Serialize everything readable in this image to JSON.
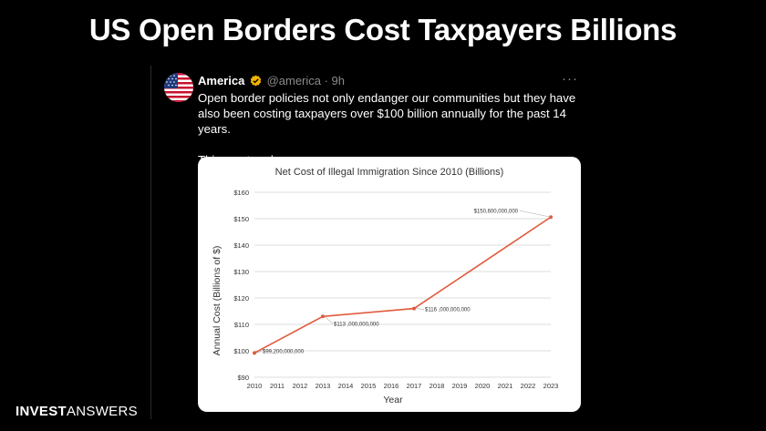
{
  "slide": {
    "title": "US Open Borders Cost Taxpayers Billions",
    "brand_bold": "INVEST",
    "brand_light": "ANSWERS"
  },
  "tweet": {
    "name": "America",
    "handle_time": "@america · 9h",
    "more": "···",
    "text_p1": "Open border policies not only endanger our communities but they have also been costing taxpayers over $100 billion annually for the past 14 years.",
    "text_p2": "This must end."
  },
  "colors": {
    "line": "#e05b3e",
    "grid": "#dddddd",
    "verified": "#f0b400"
  },
  "chart_data": {
    "type": "line",
    "title": "Net Cost of Illegal Immigration Since 2010 (Billions)",
    "xlabel": "Year",
    "ylabel": "Annual Cost (Billions of $)",
    "x_ticks": [
      2010,
      2011,
      2012,
      2013,
      2014,
      2015,
      2016,
      2017,
      2018,
      2019,
      2020,
      2021,
      2022,
      2023
    ],
    "y_ticks": [
      "$90",
      "$100",
      "$110",
      "$120",
      "$130",
      "$140",
      "$150",
      "$160"
    ],
    "ylim": [
      90,
      160
    ],
    "xlim": [
      2010,
      2023
    ],
    "grid": true,
    "series": [
      {
        "name": "Net cost",
        "x": [
          2010,
          2013,
          2017,
          2023
        ],
        "y": [
          99.2,
          113.0,
          116.0,
          150.6
        ],
        "labels": [
          "$99,200,000,000",
          "$113 ,000,000,000",
          "$116 ,000,000,000",
          "$150,600,000,000"
        ]
      }
    ]
  }
}
